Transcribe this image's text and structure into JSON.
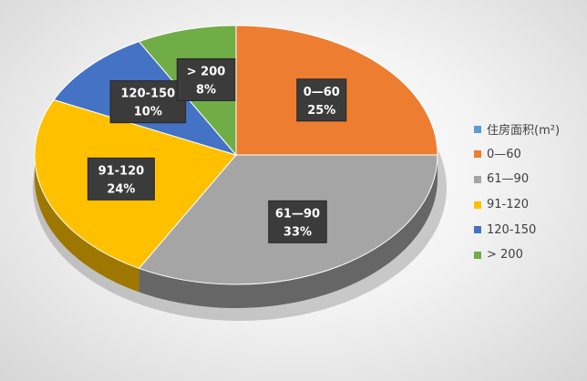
{
  "chart_data": {
    "type": "pie",
    "title": "",
    "legend_title": "住房面积(m²)",
    "legend_title_color": "#5b9bd5",
    "legend_position": "right",
    "slices": [
      {
        "label": "0—60",
        "value": 25,
        "value_label": "25%",
        "color": "#ed7d31"
      },
      {
        "label": "61—90",
        "value": 33,
        "value_label": "33%",
        "color": "#a5a5a5"
      },
      {
        "label": "91-120",
        "value": 24,
        "value_label": "24%",
        "color": "#ffc000"
      },
      {
        "label": "120-150",
        "value": 10,
        "value_label": "10%",
        "color": "#4472c4"
      },
      {
        "label": "> 200",
        "value": 8,
        "value_label": "8%",
        "color": "#70ad47"
      }
    ]
  }
}
